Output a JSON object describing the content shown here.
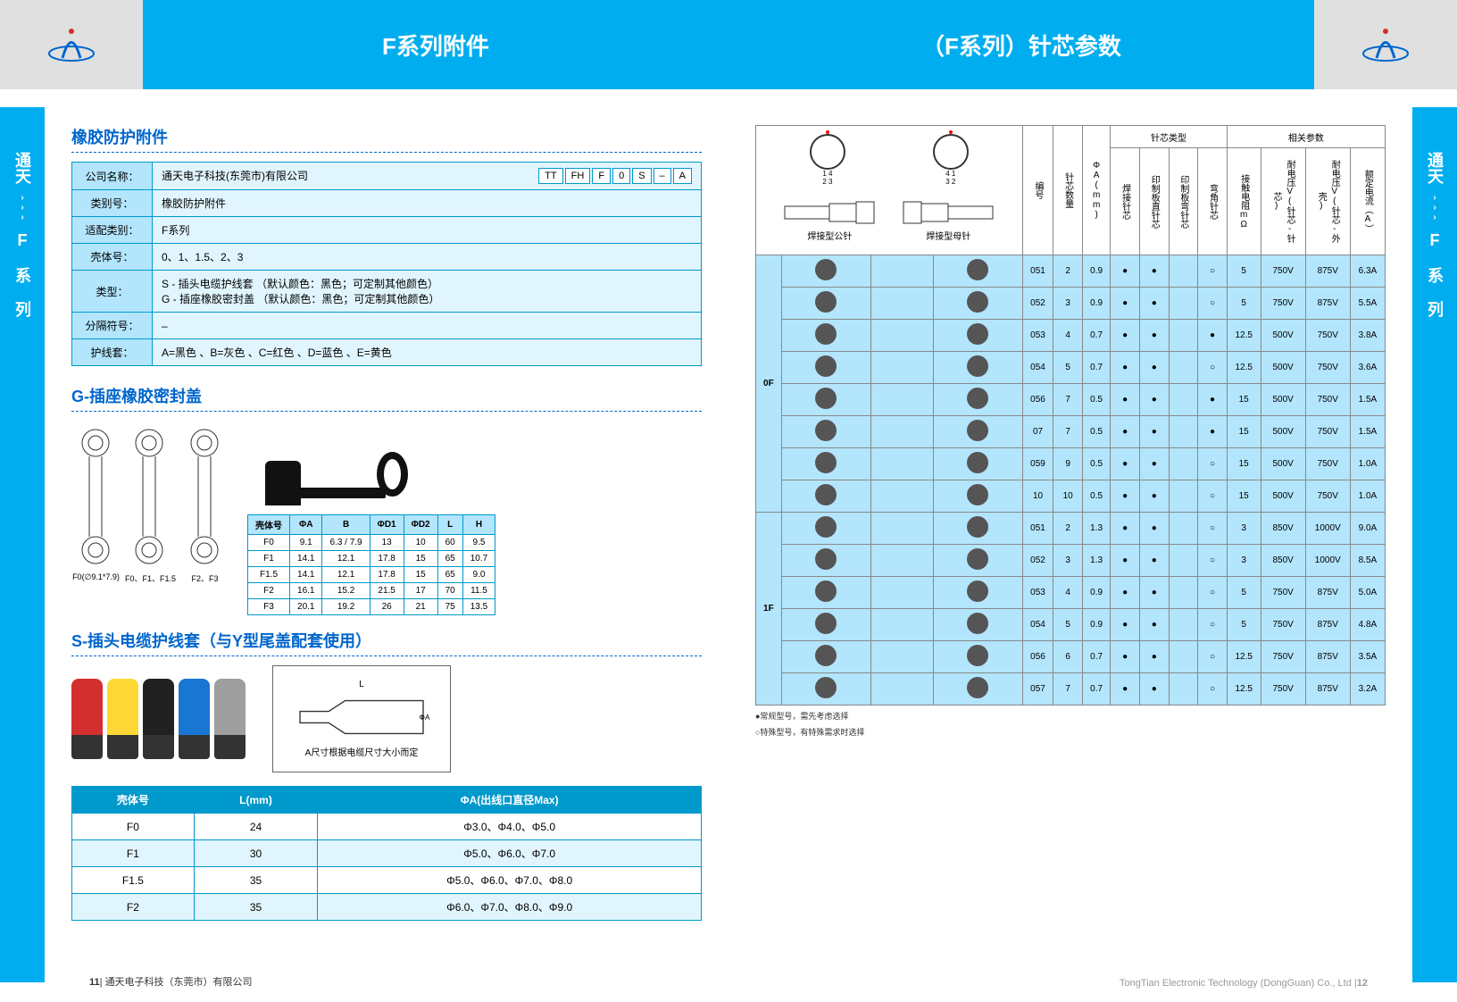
{
  "header": {
    "title_left": "F系列附件",
    "title_right": "（F系列）针芯参数"
  },
  "side_label": "通天",
  "side_series": "F 系 列",
  "rubber_section": {
    "title": "橡胶防护附件",
    "code_parts": [
      "TT",
      "FH",
      "F",
      "0",
      "S",
      "–",
      "A"
    ],
    "rows": [
      {
        "label": "公司名称：",
        "value": "通天电子科技(东莞市)有限公司"
      },
      {
        "label": "类别号：",
        "value": "橡胶防护附件"
      },
      {
        "label": "适配类别：",
        "value": "F系列"
      },
      {
        "label": "壳体号：",
        "value": "0、1、1.5、2、3"
      },
      {
        "label": "类型：",
        "value": "S - 插头电缆护线套 （默认颜色：黑色；可定制其他颜色）\nG - 插座橡胶密封盖 （默认颜色：黑色；可定制其他颜色）"
      },
      {
        "label": "分隔符号：",
        "value": "–"
      },
      {
        "label": "护线套：",
        "value": "A=黑色 、B=灰色 、C=红色 、D=蓝色 、E=黄色"
      }
    ]
  },
  "cap_section": {
    "title": "G-插座橡胶密封盖",
    "diagram_labels": [
      "F0(∅9.1*7.9)",
      "F0、F1、F1.5",
      "F2、F3"
    ],
    "dim_headers": [
      "壳体号",
      "ΦA",
      "B",
      "ΦD1",
      "ΦD2",
      "L",
      "H"
    ],
    "dim_rows": [
      [
        "F0",
        "9.1",
        "6.3 / 7.9",
        "13",
        "10",
        "60",
        "9.5"
      ],
      [
        "F1",
        "14.1",
        "12.1",
        "17.8",
        "15",
        "65",
        "10.7"
      ],
      [
        "F1.5",
        "14.1",
        "12.1",
        "17.8",
        "15",
        "65",
        "9.0"
      ],
      [
        "F2",
        "16.1",
        "15.2",
        "21.5",
        "17",
        "70",
        "11.5"
      ],
      [
        "F3",
        "20.1",
        "19.2",
        "26",
        "21",
        "75",
        "13.5"
      ]
    ]
  },
  "sleeve_section": {
    "title": "S-插头电缆护线套（与Y型尾盖配套使用）",
    "sleeve_colors": [
      "#d32f2f",
      "#fdd835",
      "#212121",
      "#1976d2",
      "#9e9e9e"
    ],
    "diagram_note": "A尺寸根据电缆尺寸大小而定",
    "table_headers": [
      "壳体号",
      "L(mm)",
      "ΦA(出线口直径Max)"
    ],
    "table_rows": [
      [
        "F0",
        "24",
        "Φ3.0、Φ4.0、Φ5.0"
      ],
      [
        "F1",
        "30",
        "Φ5.0、Φ6.0、Φ7.0"
      ],
      [
        "F1.5",
        "35",
        "Φ5.0、Φ6.0、Φ7.0、Φ8.0"
      ],
      [
        "F2",
        "35",
        "Φ6.0、Φ7.0、Φ8.0、Φ9.0"
      ]
    ]
  },
  "pin_table": {
    "diagram_labels": {
      "male": "焊接型公针",
      "female": "焊接型母针"
    },
    "col_group1": "针芯类型",
    "col_group2": "相关参数",
    "headers": [
      "编号",
      "针芯数量",
      "ΦA(mm)",
      "焊接针芯",
      "印制板直针芯",
      "印制板弯针芯",
      "弯角针芯",
      "接触电阻mΩ",
      "耐电压V(针芯-针芯)",
      "耐电压V(针芯-外壳)",
      "额定电流（A）"
    ],
    "series": [
      {
        "label": "0F",
        "rows": [
          {
            "id": "051",
            "qty": "2",
            "dia": "0.9",
            "t1": "●",
            "t2": "●",
            "t3": "",
            "t4": "○",
            "r": "5",
            "v1": "750V",
            "v2": "875V",
            "a": "6.3A"
          },
          {
            "id": "052",
            "qty": "3",
            "dia": "0.9",
            "t1": "●",
            "t2": "●",
            "t3": "",
            "t4": "○",
            "r": "5",
            "v1": "750V",
            "v2": "875V",
            "a": "5.5A"
          },
          {
            "id": "053",
            "qty": "4",
            "dia": "0.7",
            "t1": "●",
            "t2": "●",
            "t3": "",
            "t4": "●",
            "r": "12.5",
            "v1": "500V",
            "v2": "750V",
            "a": "3.8A"
          },
          {
            "id": "054",
            "qty": "5",
            "dia": "0.7",
            "t1": "●",
            "t2": "●",
            "t3": "",
            "t4": "○",
            "r": "12.5",
            "v1": "500V",
            "v2": "750V",
            "a": "3.6A"
          },
          {
            "id": "056",
            "qty": "7",
            "dia": "0.5",
            "t1": "●",
            "t2": "●",
            "t3": "",
            "t4": "●",
            "r": "15",
            "v1": "500V",
            "v2": "750V",
            "a": "1.5A"
          },
          {
            "id": "07",
            "qty": "7",
            "dia": "0.5",
            "t1": "●",
            "t2": "●",
            "t3": "",
            "t4": "●",
            "r": "15",
            "v1": "500V",
            "v2": "750V",
            "a": "1.5A"
          },
          {
            "id": "059",
            "qty": "9",
            "dia": "0.5",
            "t1": "●",
            "t2": "●",
            "t3": "",
            "t4": "○",
            "r": "15",
            "v1": "500V",
            "v2": "750V",
            "a": "1.0A"
          },
          {
            "id": "10",
            "qty": "10",
            "dia": "0.5",
            "t1": "●",
            "t2": "●",
            "t3": "",
            "t4": "○",
            "r": "15",
            "v1": "500V",
            "v2": "750V",
            "a": "1.0A"
          }
        ]
      },
      {
        "label": "1F",
        "rows": [
          {
            "id": "051",
            "qty": "2",
            "dia": "1.3",
            "t1": "●",
            "t2": "●",
            "t3": "",
            "t4": "○",
            "r": "3",
            "v1": "850V",
            "v2": "1000V",
            "a": "9.0A"
          },
          {
            "id": "052",
            "qty": "3",
            "dia": "1.3",
            "t1": "●",
            "t2": "●",
            "t3": "",
            "t4": "○",
            "r": "3",
            "v1": "850V",
            "v2": "1000V",
            "a": "8.5A"
          },
          {
            "id": "053",
            "qty": "4",
            "dia": "0.9",
            "t1": "●",
            "t2": "●",
            "t3": "",
            "t4": "○",
            "r": "5",
            "v1": "750V",
            "v2": "875V",
            "a": "5.0A"
          },
          {
            "id": "054",
            "qty": "5",
            "dia": "0.9",
            "t1": "●",
            "t2": "●",
            "t3": "",
            "t4": "○",
            "r": "5",
            "v1": "750V",
            "v2": "875V",
            "a": "4.8A"
          },
          {
            "id": "056",
            "qty": "6",
            "dia": "0.7",
            "t1": "●",
            "t2": "●",
            "t3": "",
            "t4": "○",
            "r": "12.5",
            "v1": "750V",
            "v2": "875V",
            "a": "3.5A"
          },
          {
            "id": "057",
            "qty": "7",
            "dia": "0.7",
            "t1": "●",
            "t2": "●",
            "t3": "",
            "t4": "○",
            "r": "12.5",
            "v1": "750V",
            "v2": "875V",
            "a": "3.2A"
          }
        ]
      }
    ],
    "footnote1": "●常规型号，需先考虑选择",
    "footnote2": "○特殊型号，有特殊需求时选择"
  },
  "footer": {
    "left_page": "11",
    "left_company": "通天电子科技（东莞市）有限公司",
    "right_company": "TongTian Electronic Technology (DongGuan) Co., Ltd",
    "right_page": "12"
  },
  "colors": {
    "primary_blue": "#00aeef",
    "light_blue": "#b3e5fc",
    "pale_blue": "#e1f5fe",
    "dark_blue": "#0066cc"
  }
}
